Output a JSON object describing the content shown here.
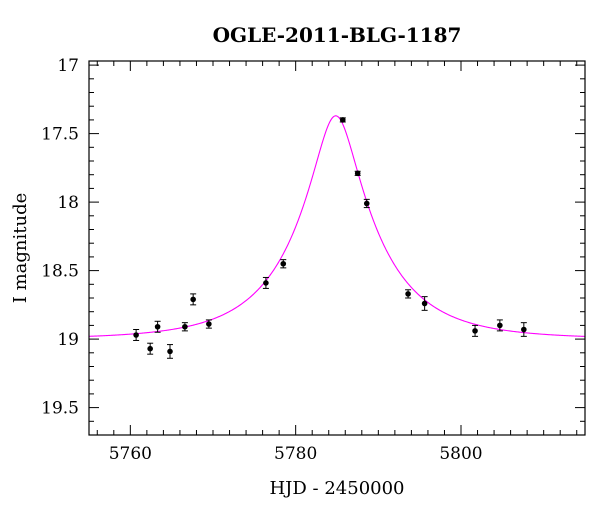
{
  "chart_data": {
    "type": "scatter",
    "title": "OGLE-2011-BLG-1187",
    "xlabel": "HJD - 2450000",
    "ylabel": "I magnitude",
    "xlim": [
      5755,
      5815
    ],
    "ylim": [
      19.7,
      16.97
    ],
    "y_inverted": true,
    "x_ticks": [
      5760,
      5780,
      5800
    ],
    "y_ticks": [
      17,
      17.5,
      18,
      18.5,
      19,
      19.5
    ],
    "y_tick_labels": [
      "17",
      "17.5",
      "18",
      "18.5",
      "19",
      "19.5"
    ],
    "x_tick_labels": [
      "5760",
      "5780",
      "5800"
    ],
    "grid": false,
    "colors": {
      "model": "#ff00ff",
      "points": "#000000",
      "axes": "#000000"
    },
    "series": [
      {
        "kind": "points_with_errorbars",
        "x": [
          5760.7,
          5762.4,
          5763.3,
          5764.8,
          5766.6,
          5767.6,
          5769.5,
          5776.4,
          5778.5,
          5785.7,
          5787.5,
          5788.6,
          5793.6,
          5795.6,
          5801.7,
          5804.7,
          5807.6
        ],
        "y": [
          18.97,
          19.07,
          18.91,
          19.09,
          18.91,
          18.71,
          18.89,
          18.59,
          18.45,
          17.4,
          17.79,
          18.01,
          18.67,
          18.74,
          18.94,
          18.9,
          18.93
        ],
        "yerr": [
          0.04,
          0.04,
          0.04,
          0.05,
          0.03,
          0.04,
          0.03,
          0.04,
          0.03,
          0.015,
          0.015,
          0.03,
          0.03,
          0.05,
          0.04,
          0.04,
          0.05
        ]
      },
      {
        "kind": "model_curve",
        "t0": 5784.85,
        "u0": 0.24,
        "tE": 10.2,
        "baseline": 19.0,
        "peak": 17.37
      }
    ]
  }
}
